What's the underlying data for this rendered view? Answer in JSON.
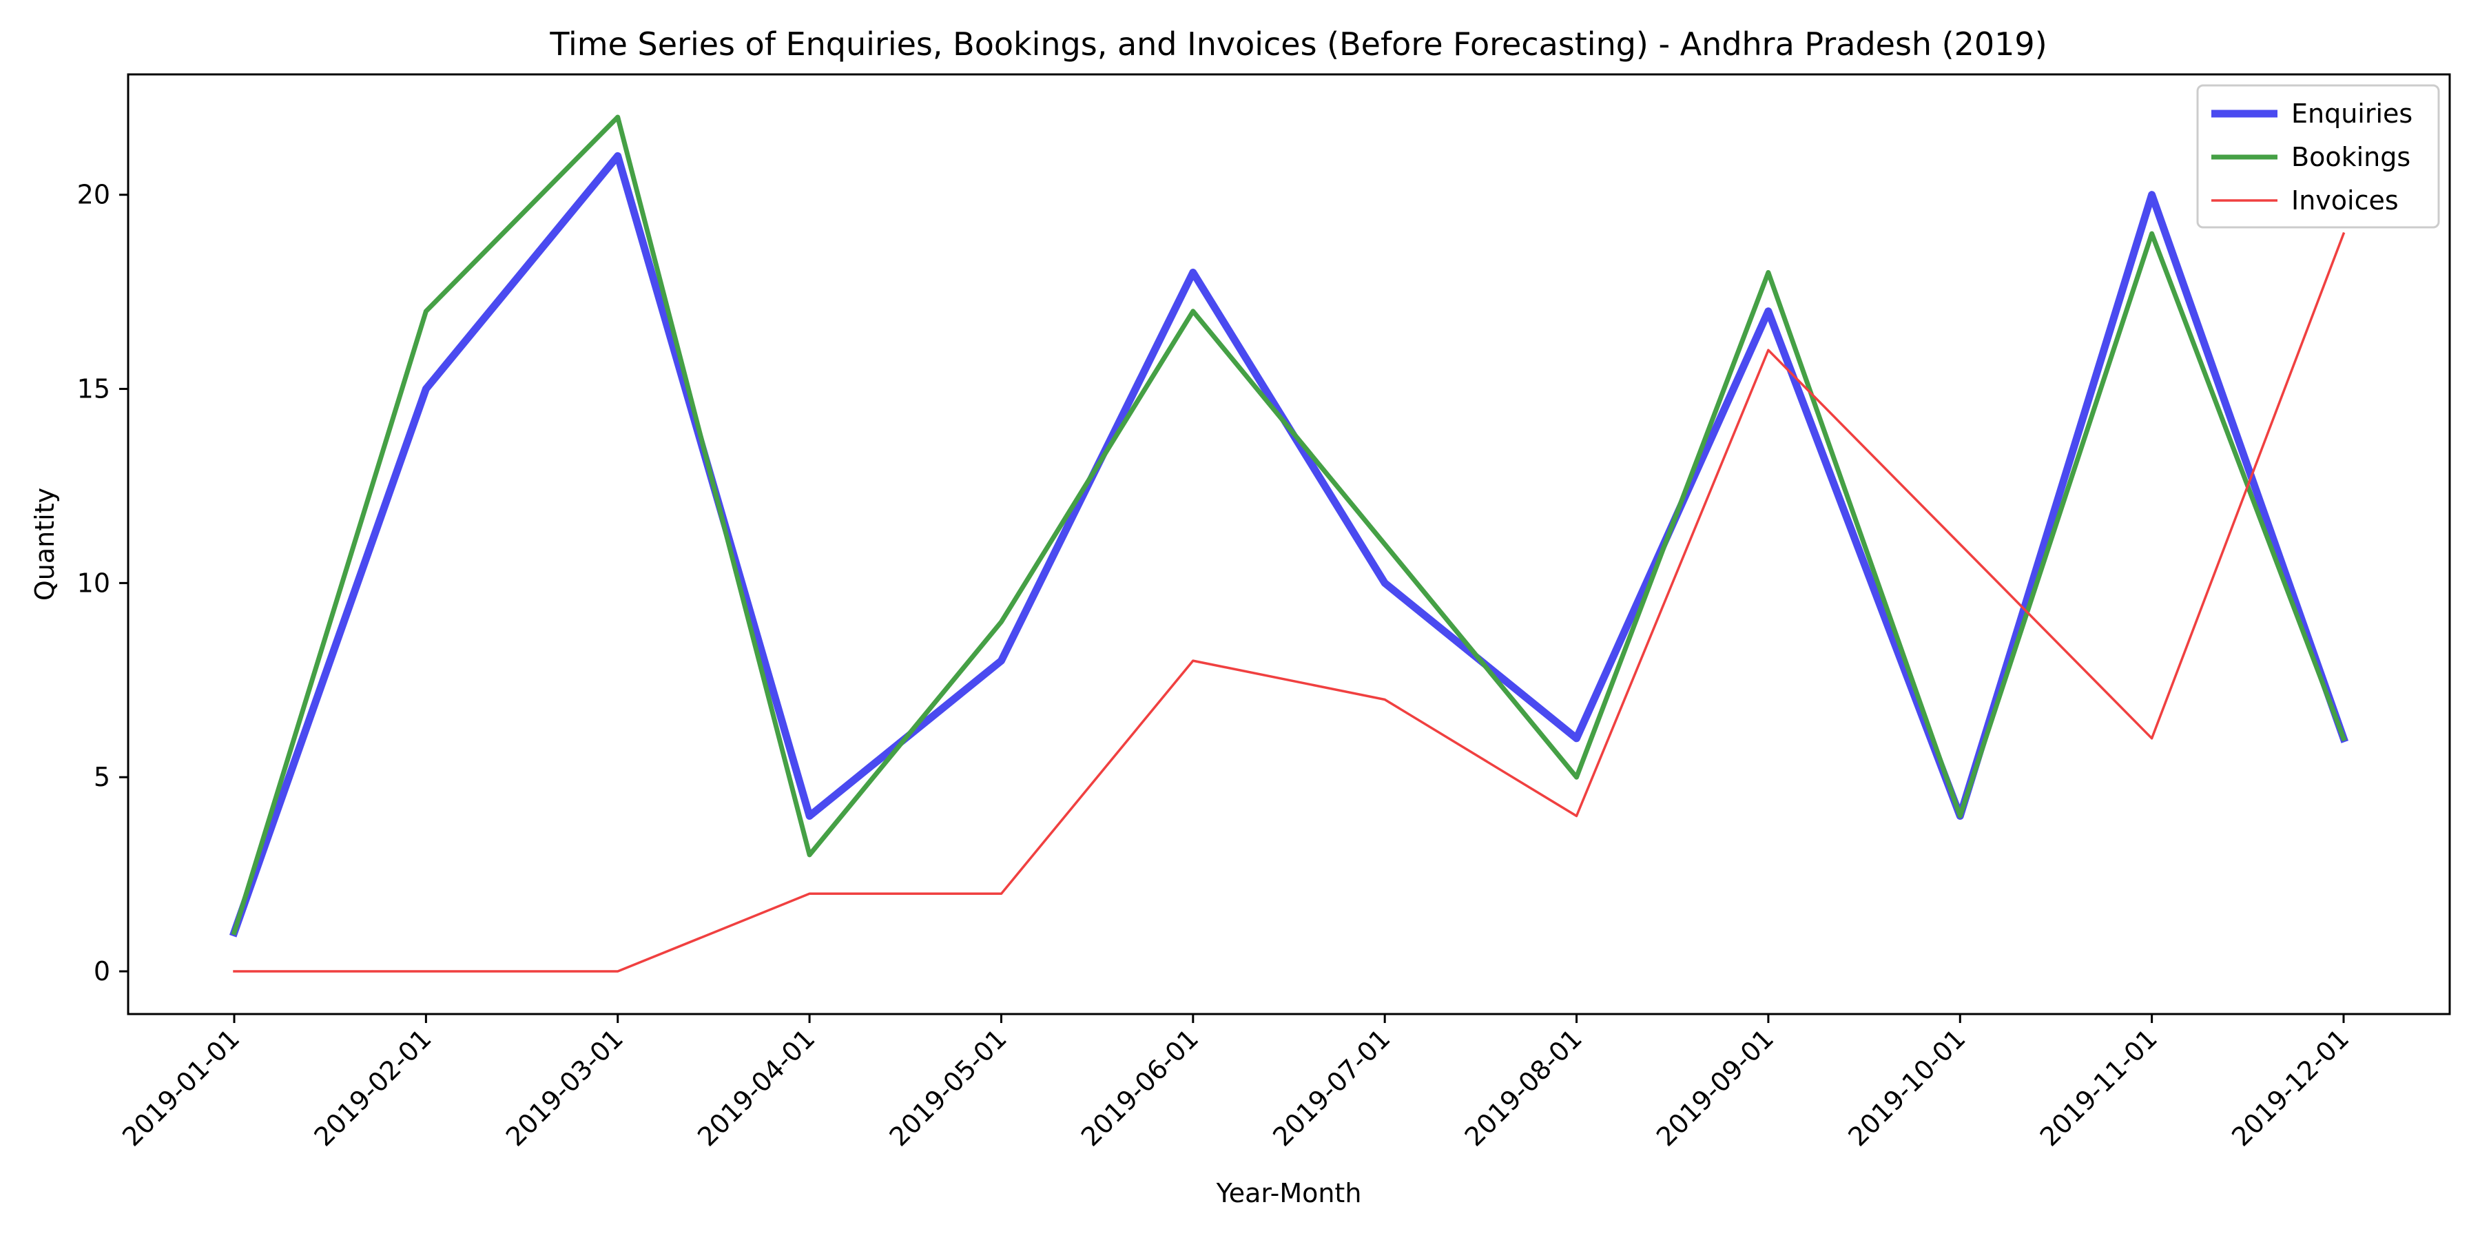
{
  "chart_data": {
    "type": "line",
    "title": "Time Series of Enquiries, Bookings, and Invoices (Before Forecasting) - Andhra Pradesh (2019)",
    "xlabel": "Year-Month",
    "ylabel": "Quantity",
    "categories": [
      "2019-01-01",
      "2019-02-01",
      "2019-03-01",
      "2019-04-01",
      "2019-05-01",
      "2019-06-01",
      "2019-07-01",
      "2019-08-01",
      "2019-09-01",
      "2019-10-01",
      "2019-11-01",
      "2019-12-01"
    ],
    "series": [
      {
        "name": "Enquiries",
        "color": "#4a4af0",
        "line_width": "thick",
        "values": [
          1,
          15,
          21,
          4,
          8,
          18,
          10,
          6,
          17,
          4,
          20,
          6
        ]
      },
      {
        "name": "Bookings",
        "color": "#45a045",
        "line_width": "medium",
        "values": [
          1,
          17,
          22,
          3,
          9,
          17,
          11,
          5,
          18,
          4,
          19,
          6
        ]
      },
      {
        "name": "Invoices",
        "color": "#f04040",
        "line_width": "thin",
        "values": [
          0,
          0,
          0,
          2,
          2,
          8,
          7,
          4,
          16,
          11,
          6,
          19
        ]
      }
    ],
    "ylim": [
      -1.1,
      23.1
    ],
    "y_ticks": [
      "0",
      "5",
      "10",
      "15",
      "20"
    ],
    "y_tick_values": [
      0,
      5,
      10,
      15,
      20
    ],
    "x_tick_rotation_deg": 45,
    "grid": false,
    "legend_position": "top-right"
  }
}
